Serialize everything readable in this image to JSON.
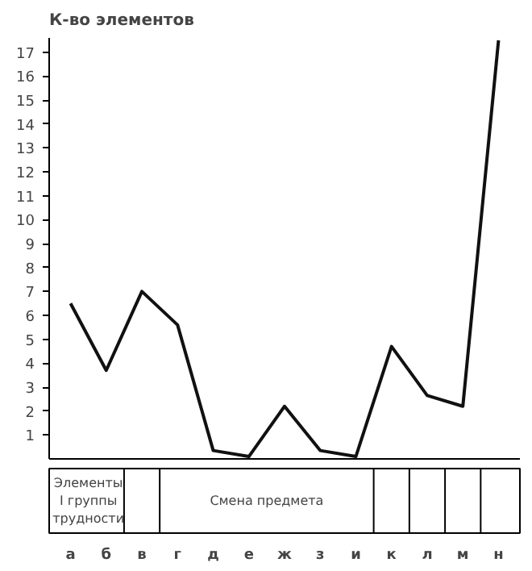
{
  "chart_data": {
    "type": "line",
    "ylabel": "К-во элементов",
    "categories": [
      "а",
      "б",
      "в",
      "г",
      "д",
      "е",
      "ж",
      "з",
      "и",
      "к",
      "л",
      "м",
      "н"
    ],
    "series": [
      {
        "color": "#111111",
        "values": [
          6.5,
          3.7,
          7.0,
          5.6,
          0.35,
          0.1,
          2.2,
          0.35,
          0.1,
          4.7,
          2.65,
          2.2,
          17.5
        ]
      }
    ],
    "ylim": [
      0,
      17.6
    ],
    "yticks": [
      1,
      2,
      3,
      4,
      5,
      6,
      7,
      8,
      9,
      10,
      11,
      12,
      13,
      14,
      15,
      16,
      17
    ],
    "grid": false,
    "marker": "none",
    "line_style": "solid",
    "annotations": [
      "Элементы\nI группы\nтрудности",
      "Смена предмета"
    ]
  }
}
